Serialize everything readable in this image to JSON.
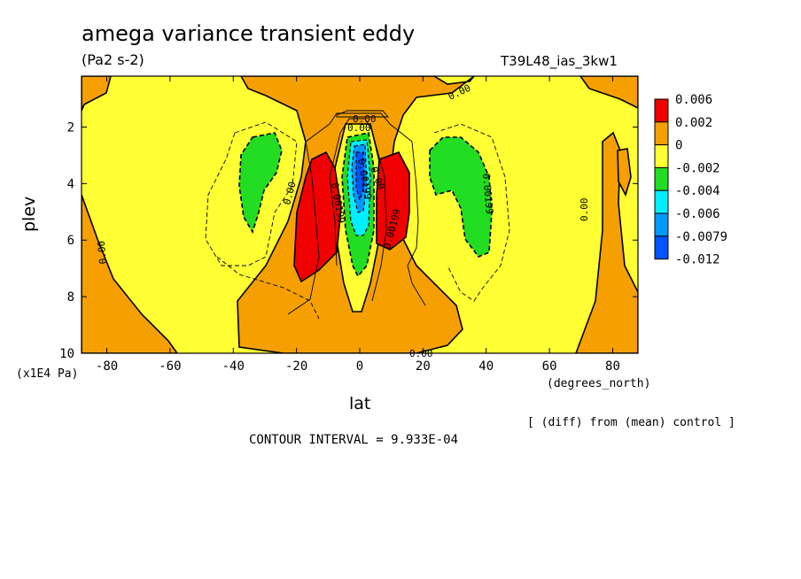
{
  "chart_data": {
    "type": "contour",
    "title": "amega variance transient eddy",
    "units": "(Pa2 s-2)",
    "run_label": "T39L48_ias_3kw1",
    "xlabel": "lat",
    "xunit": "(degrees_north)",
    "ylabel": "plev",
    "yunit": "(x1E4 Pa)",
    "xlim": [
      -88,
      88
    ],
    "ylim": [
      10,
      0.2
    ],
    "xticks": [
      "-80",
      "-60",
      "-40",
      "-20",
      "0",
      "20",
      "40",
      "60",
      "80"
    ],
    "xtick_values": [
      -80,
      -60,
      -40,
      -20,
      0,
      20,
      40,
      60,
      80
    ],
    "yticks": [
      "2",
      "4",
      "6",
      "8",
      "10"
    ],
    "ytick_values": [
      2,
      4,
      6,
      8,
      10
    ],
    "note": "[ (diff) from (mean) control ]",
    "contour_interval": "CONTOUR INTERVAL = 9.933E-04",
    "contour_labels": [
      "0.00",
      "0.00",
      "0.00",
      "0.00",
      "0.00",
      "0.00",
      "0.00",
      "0.00199",
      "0.00199",
      "0.00199",
      "0.00199",
      "0.00"
    ],
    "legend": {
      "labels": [
        "0.006",
        "0.002",
        "0",
        "-0.002",
        "-0.004",
        "-0.006",
        "-0.0079",
        "-0.012"
      ],
      "colors": [
        "#f00000",
        "#f5a000",
        "#ffff33",
        "#22dd22",
        "#00eeff",
        "#0099ff",
        "#0055ff"
      ]
    }
  }
}
